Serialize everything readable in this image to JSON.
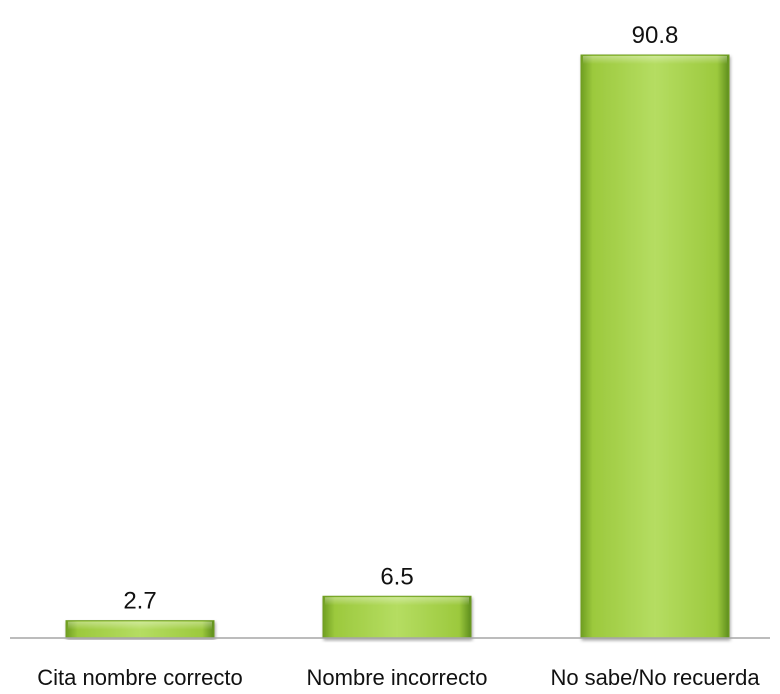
{
  "chart_data": {
    "type": "bar",
    "categories": [
      "Cita nombre correcto",
      "Nombre incorrecto",
      "No sabe/No recuerda"
    ],
    "values": [
      2.7,
      6.5,
      90.8
    ],
    "value_labels": [
      "2.7",
      "6.5",
      "90.8"
    ],
    "title": "",
    "xlabel": "",
    "ylabel": "",
    "ylim": [
      0,
      100
    ],
    "grid": false,
    "legend": "none",
    "colors": {
      "bar_light": "#b5dd62",
      "bar_mid": "#8fc12f",
      "bar_dark": "#5d8d1d",
      "baseline": "#a6a6a6"
    }
  }
}
